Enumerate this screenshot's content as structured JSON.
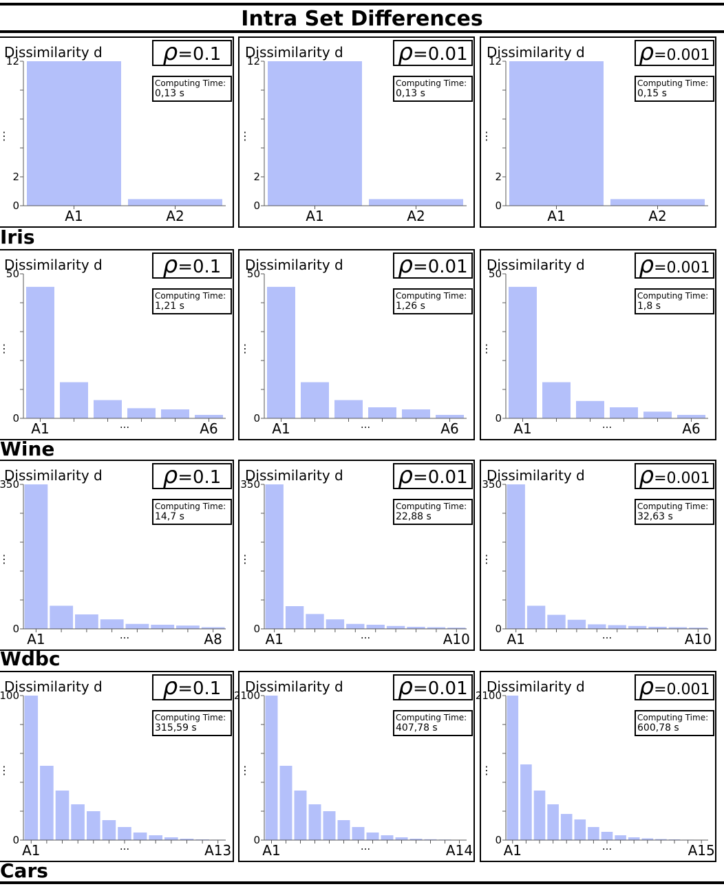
{
  "title": "Intra Set Differences",
  "rho_symbol": "ρ",
  "time_label": "Computing Time:",
  "bar_color": "#b4c0fa",
  "rows": [
    {
      "dataset": "Iris",
      "ylabel": "Dissimilarity d",
      "ymax": 12,
      "yticks": [
        {
          "v": 0,
          "label": "0"
        },
        {
          "v": 2,
          "label": "2"
        },
        {
          "v": 12,
          "label": "12"
        }
      ],
      "ybreak": "⋮",
      "xlabels": [
        "A1",
        "A2"
      ],
      "ellipsis": "",
      "panels": [
        {
          "rho": "=0.1",
          "time": "0,13 s",
          "values": [
            12.1,
            0.55
          ]
        },
        {
          "rho": "=0.01",
          "time": "0,13 s",
          "values": [
            12.1,
            0.55
          ]
        },
        {
          "rho": "=0.001",
          "time": "0,15 s",
          "values": [
            12.1,
            0.55
          ]
        }
      ]
    },
    {
      "dataset": "Wine",
      "ylabel": "Dissimilarity d",
      "ymax": 50,
      "yticks": [
        {
          "v": 0,
          "label": "0"
        },
        {
          "v": 50,
          "label": "50"
        }
      ],
      "ybreak": "⋮",
      "xlabels": [
        "A1",
        "A6"
      ],
      "ellipsis": "...",
      "panels": [
        {
          "rho": "=0.1",
          "time": "1,21 s",
          "values": [
            45.5,
            12.5,
            6.3,
            3.5,
            3.1,
            1.2
          ]
        },
        {
          "rho": "=0.01",
          "time": "1,26 s",
          "values": [
            45.5,
            12.5,
            6.3,
            3.8,
            3.1,
            1.2
          ]
        },
        {
          "rho": "=0.001",
          "time": "1,8 s",
          "values": [
            45.5,
            12.5,
            6.0,
            3.8,
            2.3,
            1.2
          ]
        }
      ]
    },
    {
      "dataset": "Wdbc",
      "ylabel": "Dissimilarity d",
      "ymax": 350,
      "yticks": [
        {
          "v": 0,
          "label": "0"
        },
        {
          "v": 350,
          "label": "350"
        }
      ],
      "ybreak": "⋮",
      "xlabels": [
        "A1",
        "A8"
      ],
      "xlabels_by_panel": [
        [
          "A1",
          "A8"
        ],
        [
          "A1",
          "A10"
        ],
        [
          "A1",
          "A10"
        ]
      ],
      "ellipsis": "...",
      "panels": [
        {
          "rho": "=0.1",
          "time": "14,7 s",
          "values": [
            350,
            56,
            35,
            23,
            12,
            10,
            8,
            4
          ]
        },
        {
          "rho": "=0.01",
          "time": "22,88 s",
          "values": [
            350,
            55,
            36,
            23,
            12,
            10,
            7,
            5,
            4,
            3
          ]
        },
        {
          "rho": "=0.001",
          "time": "32,63 s",
          "values": [
            350,
            56,
            34,
            22,
            11,
            9,
            7,
            5,
            4,
            3
          ]
        }
      ]
    },
    {
      "dataset": "Cars",
      "ylabel": "Dissimilarity d",
      "ymax": 2100,
      "yticks": [
        {
          "v": 0,
          "label": "0"
        },
        {
          "v": 2100,
          "label": "2100"
        }
      ],
      "ybreak": "⋮",
      "xlabels": [
        "A1",
        "A13"
      ],
      "xlabels_by_panel": [
        [
          "A1",
          "A13"
        ],
        [
          "A1",
          "A14"
        ],
        [
          "A1",
          "A15"
        ]
      ],
      "ellipsis": "...",
      "panels": [
        {
          "rho": "=0.1",
          "time": "315,59 s",
          "values": [
            2100,
            1080,
            720,
            520,
            420,
            290,
            190,
            110,
            70,
            40,
            20,
            10,
            6
          ]
        },
        {
          "rho": "=0.01",
          "time": "407,78 s",
          "values": [
            2100,
            1080,
            720,
            520,
            420,
            290,
            190,
            110,
            70,
            40,
            20,
            12,
            8,
            5
          ]
        },
        {
          "rho": "=0.001",
          "time": "600,78 s",
          "values": [
            2100,
            1100,
            720,
            520,
            380,
            300,
            190,
            120,
            70,
            40,
            25,
            15,
            10,
            6,
            4
          ]
        }
      ]
    }
  ]
}
